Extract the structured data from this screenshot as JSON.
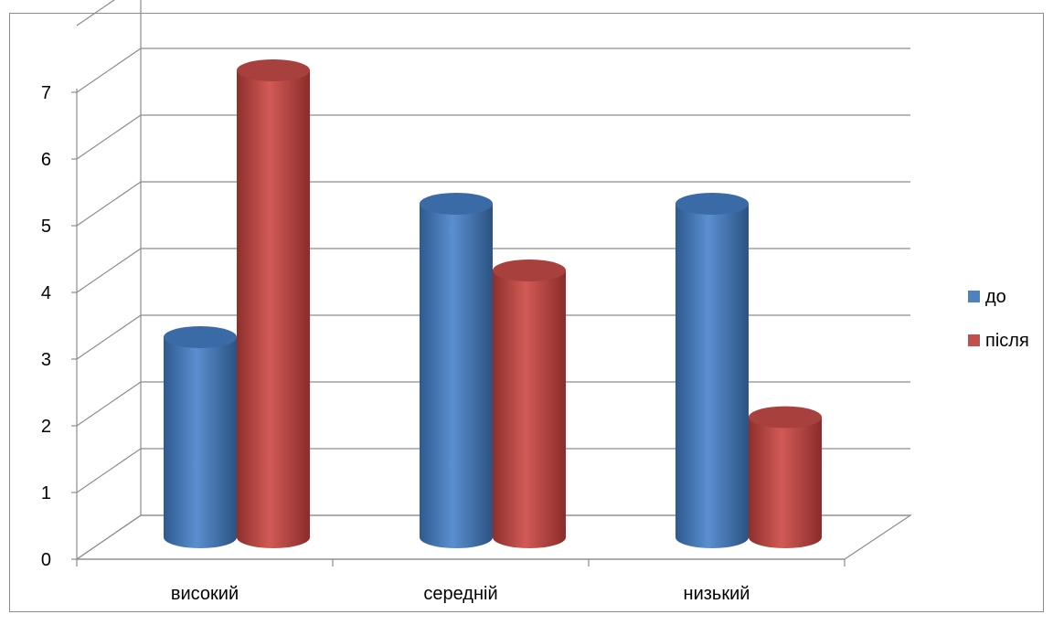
{
  "chart_data": {
    "type": "bar",
    "style": "3d-cylinder",
    "categories": [
      "високий",
      "середній",
      "низький"
    ],
    "series": [
      {
        "name": "до",
        "values": [
          3,
          5,
          5
        ],
        "color": "#4F81BD"
      },
      {
        "name": "після",
        "values": [
          7,
          4,
          1.8
        ],
        "color": "#C0504D"
      }
    ],
    "yticks": [
      "0",
      "1",
      "2",
      "3",
      "4",
      "5",
      "6",
      "7"
    ],
    "ylim": [
      0,
      8
    ],
    "grid": true,
    "legend": "right",
    "title": "",
    "xlabel": "",
    "ylabel": ""
  }
}
